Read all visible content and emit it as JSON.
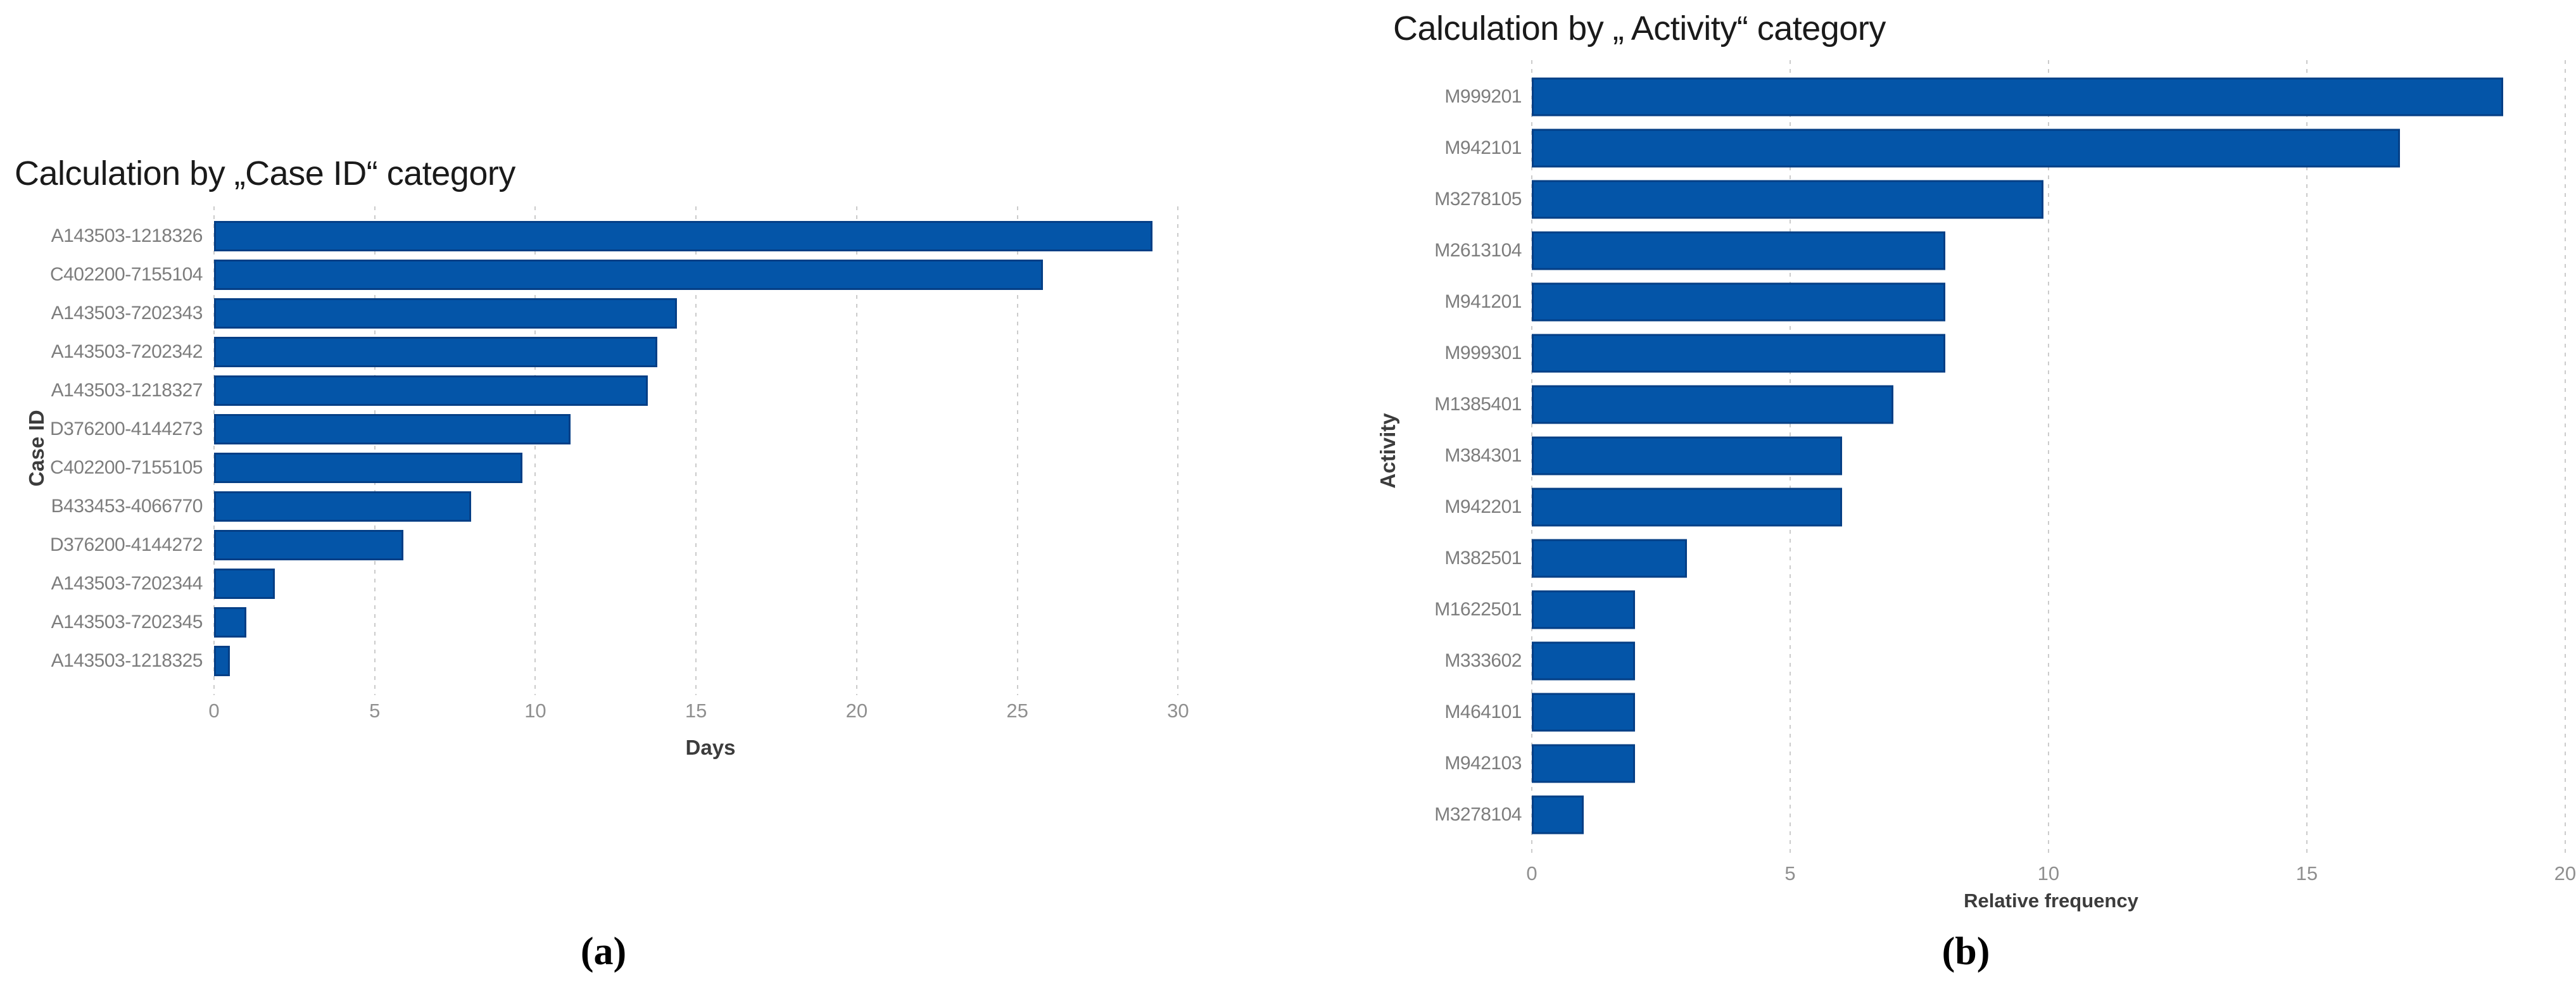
{
  "figure": {
    "description": "Two horizontal bar charts comparing calculation results by category"
  },
  "colors": {
    "bar_fill": "#0455a8",
    "bar_border": "#053f86",
    "gridline": "#cbcbcb",
    "tick_label": "#8f8f8f",
    "category_label": "#7d7d7d",
    "axis_title": "#3c3c3c",
    "chart_title": "#1a1a1a",
    "background": "#ffffff"
  },
  "chart_data": [
    {
      "type": "bar",
      "orientation": "horizontal",
      "title": "Calculation by „Case ID“ category",
      "ylabel": "Case ID",
      "xlabel": "Days",
      "caption": "(a)",
      "grid": "vertical-dashed",
      "legend": "none",
      "xlim": [
        0,
        30.9
      ],
      "x_ticks": [
        0,
        5,
        10,
        15,
        20,
        25,
        30
      ],
      "categories": [
        "A143503-1218326",
        "C402200-7155104",
        "A143503-7202343",
        "A143503-7202342",
        "A143503-1218327",
        "D376200-4144273",
        "C402200-7155105",
        "B433453-4066770",
        "D376200-4144272",
        "A143503-7202344",
        "A143503-7202345",
        "A143503-1218325"
      ],
      "values": [
        29.2,
        25.8,
        14.4,
        13.8,
        13.5,
        11.1,
        9.6,
        8.0,
        5.9,
        1.9,
        1.0,
        0.5
      ]
    },
    {
      "type": "bar",
      "orientation": "horizontal",
      "title": "Calculation by „ Activity“ category",
      "ylabel": "Activity",
      "xlabel": "Relative frequency",
      "caption": "(b)",
      "grid": "vertical-dashed",
      "legend": "none",
      "xlim": [
        0,
        20.1
      ],
      "x_ticks": [
        0,
        5,
        10,
        15,
        20
      ],
      "categories": [
        "M999201",
        "M942101",
        "M3278105",
        "M2613104",
        "M941201",
        "M999301",
        "M1385401",
        "M384301",
        "M942201",
        "M382501",
        "M1622501",
        "M333602",
        "M464101",
        "M942103",
        "M3278104"
      ],
      "values": [
        18.8,
        16.8,
        9.9,
        8.0,
        8.0,
        8.0,
        7.0,
        6.0,
        6.0,
        3.0,
        2.0,
        2.0,
        2.0,
        2.0,
        1.0
      ]
    }
  ]
}
